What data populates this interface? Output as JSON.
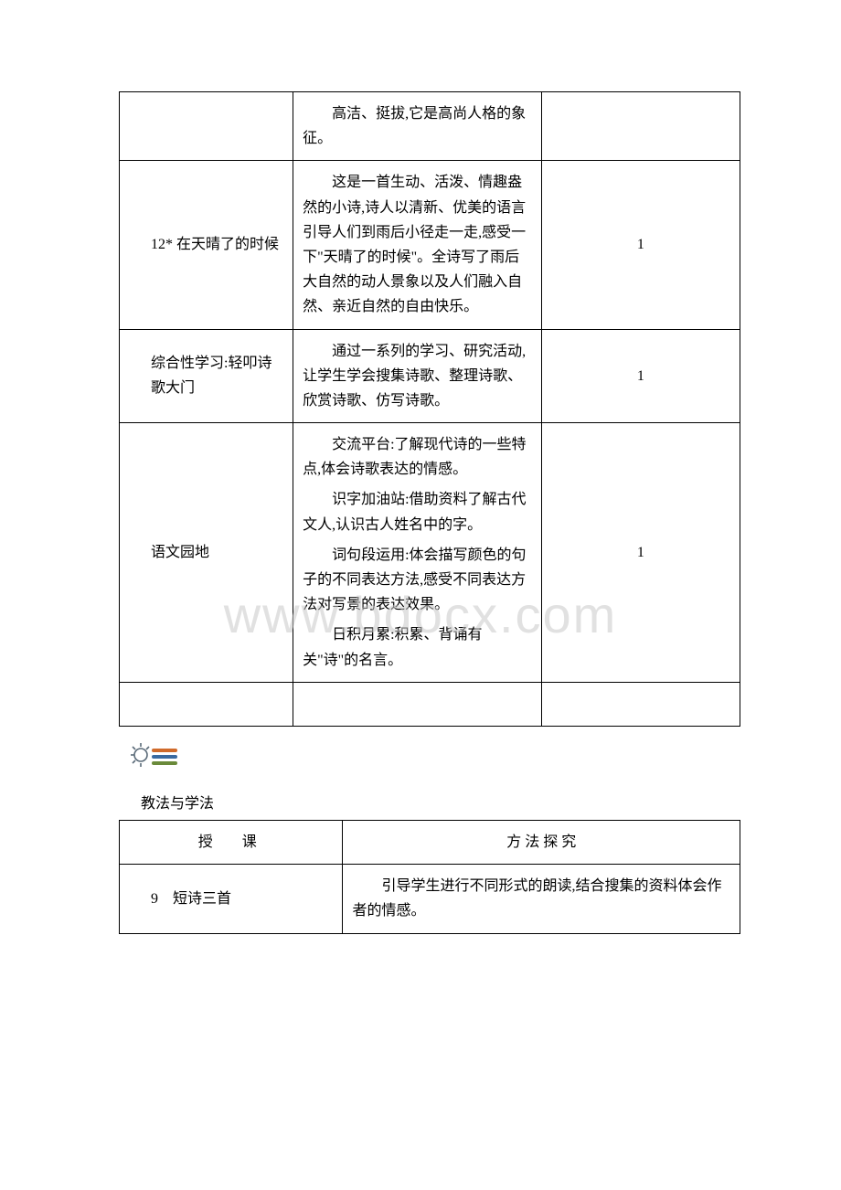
{
  "watermark": "www.bdocx.com",
  "table1": {
    "rows": [
      {
        "title": "",
        "desc": "高洁、挺拔,它是高尚人格的象征。",
        "hours": ""
      },
      {
        "title": "12* 在天晴了的时候",
        "desc": "这是一首生动、活泼、情趣盎然的小诗,诗人以清新、优美的语言引导人们到雨后小径走一走,感受一下\"天晴了的时候\"。全诗写了雨后大自然的动人景象以及人们融入自然、亲近自然的自由快乐。",
        "hours": "1"
      },
      {
        "title": "综合性学习:轻叩诗歌大门",
        "desc": "通过一系列的学习、研究活动,让学生学会搜集诗歌、整理诗歌、欣赏诗歌、仿写诗歌。",
        "hours": "1"
      },
      {
        "title": "语文园地",
        "desc_paras": [
          "交流平台:了解现代诗的一些特点,体会诗歌表达的情感。",
          "识字加油站:借助资料了解古代文人,认识古人姓名中的字。",
          "词句段运用:体会描写颜色的句子的不同表达方法,感受不同表达方法对写景的表达效果。",
          "日积月累:积累、背诵有关\"诗\"的名言。"
        ],
        "hours": "1"
      },
      {
        "title": "",
        "desc": "",
        "hours": ""
      }
    ]
  },
  "sectionLabel": "教法与学法",
  "table2": {
    "header": {
      "c1": "授　课",
      "c2": "方 法 探 究"
    },
    "rows": [
      {
        "c1": "9　短诗三首",
        "c2": "引导学生进行不同形式的朗读,结合搜集的资料体会作者的情感。"
      }
    ]
  },
  "icon": {
    "bulb_stroke": "#5a6a78",
    "rays_stroke": "#5a6a78",
    "line1": "#d06a2a",
    "line2": "#3a6aa0",
    "line3": "#6a8a3a"
  }
}
